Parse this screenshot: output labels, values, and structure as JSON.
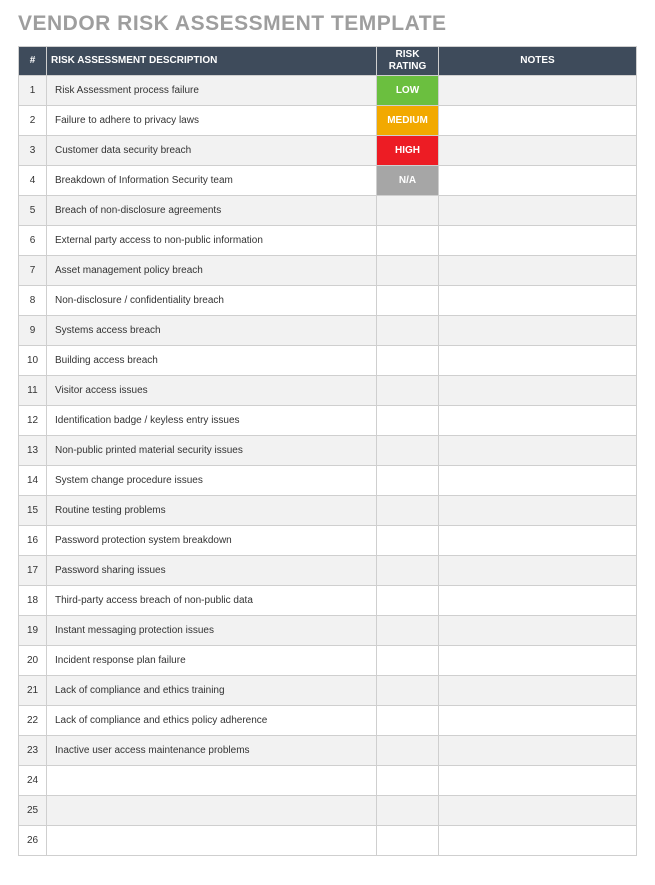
{
  "title": "VENDOR RISK ASSESSMENT TEMPLATE",
  "columns": {
    "num": "#",
    "desc": "RISK ASSESSMENT DESCRIPTION",
    "rating": "RISK RATING",
    "notes": "NOTES"
  },
  "rating_colors": {
    "LOW": "#6bbf3f",
    "MEDIUM": "#f2a900",
    "HIGH": "#ed1c24",
    "N/A": "#a6a6a6"
  },
  "rows": [
    {
      "num": "1",
      "desc": "Risk Assessment process failure",
      "rating": "LOW",
      "notes": ""
    },
    {
      "num": "2",
      "desc": "Failure to adhere to privacy laws",
      "rating": "MEDIUM",
      "notes": ""
    },
    {
      "num": "3",
      "desc": "Customer data security breach",
      "rating": "HIGH",
      "notes": ""
    },
    {
      "num": "4",
      "desc": "Breakdown of Information Security team",
      "rating": "N/A",
      "notes": ""
    },
    {
      "num": "5",
      "desc": "Breach of non-disclosure agreements",
      "rating": "",
      "notes": ""
    },
    {
      "num": "6",
      "desc": "External party access to non-public information",
      "rating": "",
      "notes": ""
    },
    {
      "num": "7",
      "desc": "Asset management policy breach",
      "rating": "",
      "notes": ""
    },
    {
      "num": "8",
      "desc": "Non-disclosure / confidentiality breach",
      "rating": "",
      "notes": ""
    },
    {
      "num": "9",
      "desc": "Systems access breach",
      "rating": "",
      "notes": ""
    },
    {
      "num": "10",
      "desc": "Building access breach",
      "rating": "",
      "notes": ""
    },
    {
      "num": "11",
      "desc": "Visitor access issues",
      "rating": "",
      "notes": ""
    },
    {
      "num": "12",
      "desc": "Identification badge / keyless entry issues",
      "rating": "",
      "notes": ""
    },
    {
      "num": "13",
      "desc": "Non-public printed material security issues",
      "rating": "",
      "notes": ""
    },
    {
      "num": "14",
      "desc": "System change procedure issues",
      "rating": "",
      "notes": ""
    },
    {
      "num": "15",
      "desc": "Routine testing problems",
      "rating": "",
      "notes": ""
    },
    {
      "num": "16",
      "desc": "Password protection system breakdown",
      "rating": "",
      "notes": ""
    },
    {
      "num": "17",
      "desc": "Password sharing issues",
      "rating": "",
      "notes": ""
    },
    {
      "num": "18",
      "desc": "Third-party access breach of non-public data",
      "rating": "",
      "notes": ""
    },
    {
      "num": "19",
      "desc": "Instant messaging protection issues",
      "rating": "",
      "notes": ""
    },
    {
      "num": "20",
      "desc": "Incident response plan failure",
      "rating": "",
      "notes": ""
    },
    {
      "num": "21",
      "desc": "Lack of compliance and ethics training",
      "rating": "",
      "notes": ""
    },
    {
      "num": "22",
      "desc": "Lack of compliance and ethics policy adherence",
      "rating": "",
      "notes": ""
    },
    {
      "num": "23",
      "desc": "Inactive user access maintenance problems",
      "rating": "",
      "notes": ""
    },
    {
      "num": "24",
      "desc": "",
      "rating": "",
      "notes": ""
    },
    {
      "num": "25",
      "desc": "",
      "rating": "",
      "notes": ""
    },
    {
      "num": "26",
      "desc": "",
      "rating": "",
      "notes": ""
    }
  ]
}
